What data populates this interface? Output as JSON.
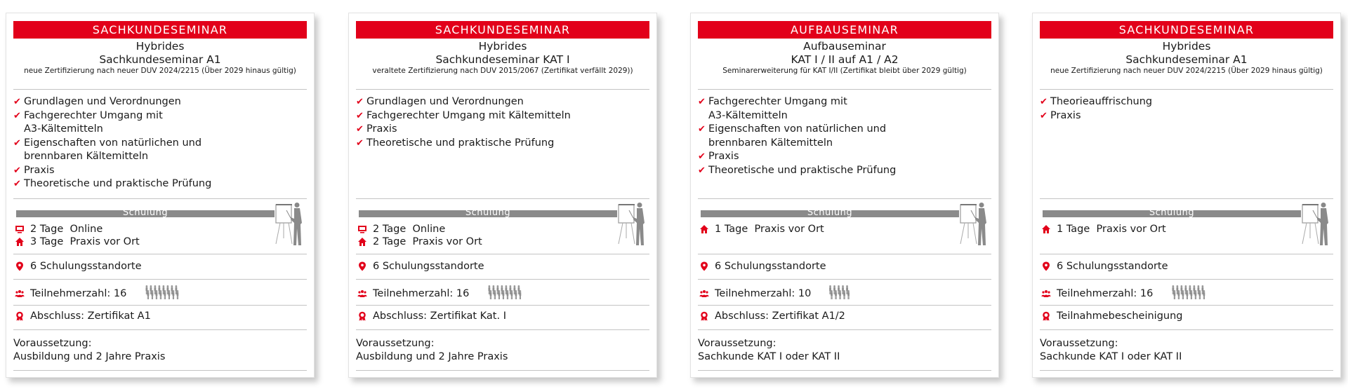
{
  "accent_color": "#e2001a",
  "cards": [
    {
      "category": "SACHKUNDESEMINAR",
      "title_line1": "Hybrides",
      "title_line2": "Sachkundeseminar A1",
      "subtitle": "neue Zertifizierung nach neuer DUV 2024/2215 (Über 2029 hinaus gültig)",
      "features": [
        "Grundlagen und Verordnungen",
        "Fachgerechter Umgang mit\nA3-Kältemitteln",
        "Eigenschaften von natürlichen und\nbrennbaren Kältemitteln",
        "Praxis",
        "Theoretische und praktische Prüfung"
      ],
      "schulung_label": "Schulung",
      "schedule": [
        {
          "icon": "monitor-icon",
          "text": "2 Tage  Online"
        },
        {
          "icon": "home-icon",
          "text": "3 Tage  Praxis vor Ort"
        }
      ],
      "locations": "6 Schulungsstandorte",
      "participants": "Teilnehmerzahl: 16",
      "participant_count": 16,
      "completion": "Abschluss: Zertifikat A1",
      "prerequisite_label": "Voraussetzung:",
      "prerequisite": "Ausbildung und 2 Jahre Praxis"
    },
    {
      "category": "SACHKUNDESEMINAR",
      "title_line1": "Hybrides",
      "title_line2": "Sachkundeseminar KAT I",
      "subtitle": "veraltete Zertifizierung nach DUV 2015/2067 (Zertifikat verfällt 2029))",
      "features": [
        "Grundlagen und Verordnungen",
        "Fachgerechter Umgang mit Kältemitteln",
        "Praxis",
        "Theoretische und praktische Prüfung"
      ],
      "schulung_label": "Schulung",
      "schedule": [
        {
          "icon": "monitor-icon",
          "text": "2 Tage  Online"
        },
        {
          "icon": "home-icon",
          "text": "2 Tage  Praxis vor Ort"
        }
      ],
      "locations": "6 Schulungsstandorte",
      "participants": "Teilnehmerzahl: 16",
      "participant_count": 16,
      "completion": "Abschluss: Zertifikat Kat. I",
      "prerequisite_label": "Voraussetzung:",
      "prerequisite": "Ausbildung und 2 Jahre Praxis"
    },
    {
      "category": "AUFBAUSEMINAR",
      "title_line1": "Aufbauseminar",
      "title_line2": "KAT I / II auf A1 / A2",
      "subtitle": "Seminarerweiterung für KAT I/II (Zertifikat bleibt über 2029 gültig)",
      "features": [
        "Fachgerechter Umgang mit\nA3-Kältemitteln",
        "Eigenschaften von natürlichen und\nbrennbaren Kältemitteln",
        "Praxis",
        "Theoretische und praktische Prüfung"
      ],
      "schulung_label": "Schulung",
      "schedule": [
        {
          "icon": "home-icon",
          "text": "1 Tage  Praxis vor Ort"
        }
      ],
      "locations": "6 Schulungsstandorte",
      "participants": "Teilnehmerzahl: 10",
      "participant_count": 10,
      "completion": "Abschluss: Zertifikat A1/2",
      "prerequisite_label": "Voraussetzung:",
      "prerequisite": "Sachkunde KAT I oder KAT II"
    },
    {
      "category": "SACHKUNDESEMINAR",
      "title_line1": "Hybrides",
      "title_line2": "Sachkundeseminar A1",
      "subtitle": "neue Zertifizierung nach neuer DUV 2024/2215 (Über 2029 hinaus gültig)",
      "features": [
        "Theorieauffrischung",
        "Praxis"
      ],
      "schulung_label": "Schulung",
      "schedule": [
        {
          "icon": "home-icon",
          "text": "1 Tage  Praxis vor Ort"
        }
      ],
      "locations": "6 Schulungsstandorte",
      "participants": "Teilnehmerzahl: 16",
      "participant_count": 16,
      "completion": "Teilnahmebescheinigung",
      "prerequisite_label": "Voraussetzung:",
      "prerequisite": "Sachkunde KAT I oder KAT II"
    }
  ]
}
